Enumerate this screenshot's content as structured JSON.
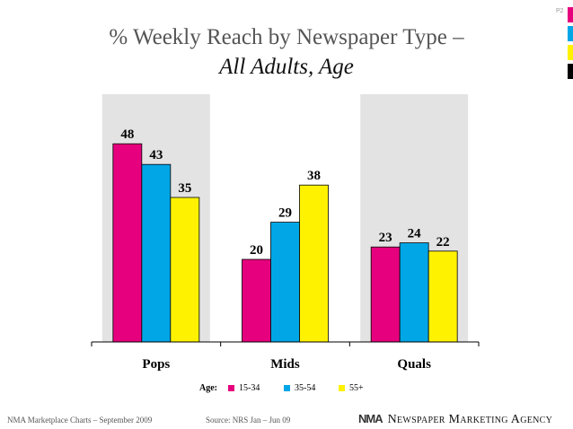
{
  "page_number": "P2",
  "title_line1": "% Weekly Reach by Newspaper Type –",
  "title_line2": "All Adults, Age",
  "colors": {
    "pink": "#E6007E",
    "blue": "#00A6E6",
    "yellow": "#FFF200",
    "panel": "#E3E3E3",
    "black": "#000000"
  },
  "chart_data": {
    "type": "bar",
    "title": "% Weekly Reach by Newspaper Type – All Adults, Age",
    "categories": [
      "Pops",
      "Mids",
      "Quals"
    ],
    "series": [
      {
        "name": "15-34",
        "color": "#E6007E",
        "values": [
          48,
          20,
          23
        ]
      },
      {
        "name": "35-54",
        "color": "#00A6E6",
        "values": [
          43,
          29,
          24
        ]
      },
      {
        "name": "55+",
        "color": "#FFF200",
        "values": [
          35,
          38,
          22
        ]
      }
    ],
    "ylim": [
      0,
      60
    ],
    "grid": false,
    "legend_position": "bottom"
  },
  "legend": {
    "label": "Age:",
    "items": [
      "15-34",
      "35-54",
      "55+"
    ]
  },
  "footer": {
    "left": "NMA Marketplace Charts – September 2009",
    "source": "Source: NRS Jan – Jun 09",
    "logo_text": "NMA",
    "brand": "Newspaper Marketing Agency"
  }
}
